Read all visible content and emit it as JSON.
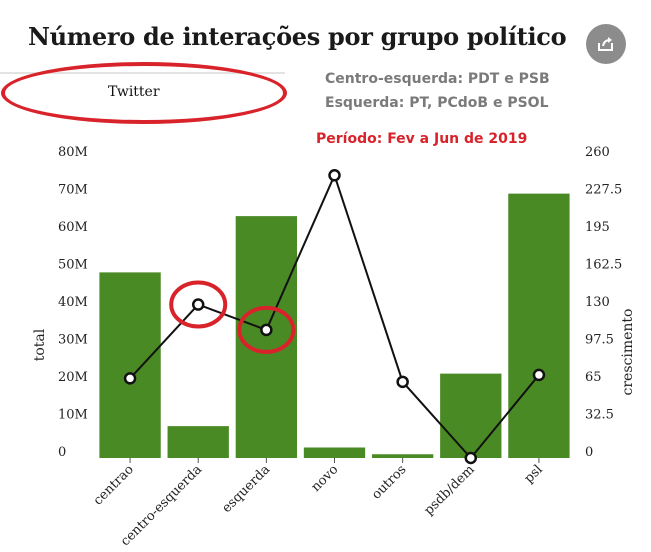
{
  "title": "Número de interações por grupo político",
  "share_icon": "share-icon",
  "tab": {
    "label": "Twitter"
  },
  "notes": {
    "line1": "Centro-esquerda: PDT e PSB",
    "line2": "Esquerda: PT, PCdoB e PSOL"
  },
  "period": "Período: Fev a Jun de 2019",
  "colors": {
    "bar": "#4a8a25",
    "line": "#111111",
    "highlight": "#d9232a",
    "note": "#7a7a7a"
  },
  "chart_data": {
    "type": "bar",
    "categories": [
      "centrao",
      "centro-esquerda",
      "esquerda",
      "novo",
      "outros",
      "psdb/dem",
      "psl"
    ],
    "series": [
      {
        "axis": "left",
        "kind": "bar",
        "values": [
          49.5,
          8.5,
          64.5,
          2.8,
          1.0,
          22.5,
          70.5
        ]
      },
      {
        "axis": "right",
        "kind": "line",
        "values": [
          69,
          133,
          111,
          245,
          66,
          0,
          72
        ]
      }
    ],
    "ylabel": "total",
    "y2label": "crescimento",
    "ylim": [
      0,
      80
    ],
    "y2lim": [
      0,
      260
    ],
    "yticks": [
      "0",
      "10M",
      "20M",
      "30M",
      "40M",
      "50M",
      "60M",
      "70M",
      "80M"
    ],
    "y2ticks": [
      "0",
      "32.5",
      "65",
      "97.5",
      "130",
      "162.5",
      "195",
      "227.5",
      "260"
    ],
    "highlighted_points": [
      "centro-esquerda",
      "esquerda"
    ]
  }
}
